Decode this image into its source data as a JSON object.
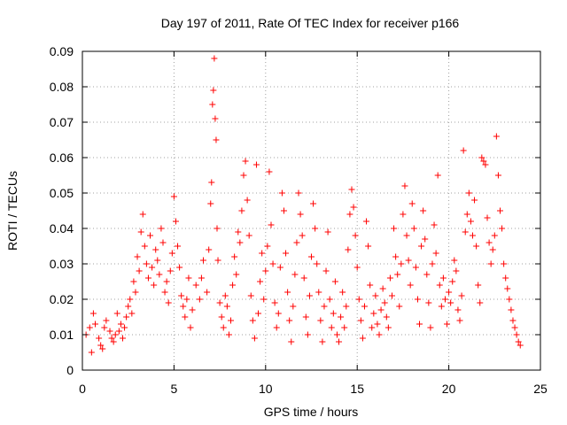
{
  "chart_data": {
    "type": "scatter",
    "title": "Day 197 of 2011, Rate Of TEC Index for receiver p166",
    "xlabel": "GPS time / hours",
    "ylabel": "ROTI / TECUs",
    "xlim": [
      0,
      25
    ],
    "ylim": [
      0,
      0.09
    ],
    "x_ticks": [
      "0",
      "5",
      "10",
      "15",
      "20",
      "25"
    ],
    "y_ticks": [
      "0",
      "0.01",
      "0.02",
      "0.03",
      "0.04",
      "0.05",
      "0.06",
      "0.07",
      "0.08",
      "0.09"
    ],
    "grid": true,
    "marker": "+",
    "marker_color": "#ff0000",
    "series": [
      {
        "points": [
          [
            0.2,
            0.01
          ],
          [
            0.4,
            0.012
          ],
          [
            0.5,
            0.005
          ],
          [
            0.6,
            0.016
          ],
          [
            0.7,
            0.013
          ],
          [
            0.9,
            0.009
          ],
          [
            1.0,
            0.007
          ],
          [
            1.1,
            0.006
          ],
          [
            1.2,
            0.012
          ],
          [
            1.3,
            0.014
          ],
          [
            1.5,
            0.011
          ],
          [
            1.6,
            0.009
          ],
          [
            1.7,
            0.008
          ],
          [
            1.8,
            0.01
          ],
          [
            1.9,
            0.016
          ],
          [
            2.0,
            0.011
          ],
          [
            2.1,
            0.013
          ],
          [
            2.2,
            0.009
          ],
          [
            2.3,
            0.012
          ],
          [
            2.4,
            0.015
          ],
          [
            2.5,
            0.018
          ],
          [
            2.6,
            0.02
          ],
          [
            2.7,
            0.016
          ],
          [
            2.8,
            0.025
          ],
          [
            2.9,
            0.022
          ],
          [
            3.0,
            0.032
          ],
          [
            3.1,
            0.028
          ],
          [
            3.2,
            0.039
          ],
          [
            3.3,
            0.044
          ],
          [
            3.4,
            0.035
          ],
          [
            3.5,
            0.03
          ],
          [
            3.6,
            0.026
          ],
          [
            3.7,
            0.038
          ],
          [
            3.8,
            0.029
          ],
          [
            3.9,
            0.024
          ],
          [
            4.0,
            0.034
          ],
          [
            4.1,
            0.031
          ],
          [
            4.2,
            0.027
          ],
          [
            4.3,
            0.04
          ],
          [
            4.4,
            0.036
          ],
          [
            4.5,
            0.022
          ],
          [
            4.6,
            0.025
          ],
          [
            4.7,
            0.019
          ],
          [
            4.8,
            0.028
          ],
          [
            4.9,
            0.033
          ],
          [
            5.0,
            0.049
          ],
          [
            5.1,
            0.042
          ],
          [
            5.2,
            0.035
          ],
          [
            5.3,
            0.029
          ],
          [
            5.4,
            0.021
          ],
          [
            5.5,
            0.018
          ],
          [
            5.6,
            0.015
          ],
          [
            5.7,
            0.02
          ],
          [
            5.8,
            0.026
          ],
          [
            5.9,
            0.012
          ],
          [
            6.0,
            0.017
          ],
          [
            6.2,
            0.024
          ],
          [
            6.4,
            0.02
          ],
          [
            6.5,
            0.026
          ],
          [
            6.6,
            0.031
          ],
          [
            6.8,
            0.022
          ],
          [
            6.9,
            0.034
          ],
          [
            7.0,
            0.047
          ],
          [
            7.05,
            0.053
          ],
          [
            7.1,
            0.075
          ],
          [
            7.15,
            0.079
          ],
          [
            7.2,
            0.088
          ],
          [
            7.25,
            0.071
          ],
          [
            7.3,
            0.065
          ],
          [
            7.35,
            0.04
          ],
          [
            7.4,
            0.031
          ],
          [
            7.5,
            0.019
          ],
          [
            7.6,
            0.015
          ],
          [
            7.7,
            0.012
          ],
          [
            7.8,
            0.021
          ],
          [
            7.9,
            0.018
          ],
          [
            8.0,
            0.01
          ],
          [
            8.1,
            0.014
          ],
          [
            8.2,
            0.024
          ],
          [
            8.3,
            0.032
          ],
          [
            8.4,
            0.027
          ],
          [
            8.5,
            0.039
          ],
          [
            8.6,
            0.036
          ],
          [
            8.7,
            0.045
          ],
          [
            8.8,
            0.055
          ],
          [
            8.9,
            0.059
          ],
          [
            9.0,
            0.048
          ],
          [
            9.1,
            0.038
          ],
          [
            9.2,
            0.021
          ],
          [
            9.3,
            0.014
          ],
          [
            9.4,
            0.009
          ],
          [
            9.5,
            0.058
          ],
          [
            9.6,
            0.016
          ],
          [
            9.7,
            0.025
          ],
          [
            9.8,
            0.033
          ],
          [
            9.9,
            0.02
          ],
          [
            10.0,
            0.028
          ],
          [
            10.1,
            0.035
          ],
          [
            10.2,
            0.056
          ],
          [
            10.3,
            0.041
          ],
          [
            10.4,
            0.03
          ],
          [
            10.5,
            0.019
          ],
          [
            10.6,
            0.012
          ],
          [
            10.7,
            0.016
          ],
          [
            10.8,
            0.029
          ],
          [
            10.9,
            0.05
          ],
          [
            11.0,
            0.045
          ],
          [
            11.1,
            0.033
          ],
          [
            11.2,
            0.022
          ],
          [
            11.3,
            0.014
          ],
          [
            11.4,
            0.008
          ],
          [
            11.5,
            0.018
          ],
          [
            11.6,
            0.027
          ],
          [
            11.7,
            0.036
          ],
          [
            11.8,
            0.05
          ],
          [
            11.9,
            0.044
          ],
          [
            12.0,
            0.038
          ],
          [
            12.1,
            0.026
          ],
          [
            12.2,
            0.015
          ],
          [
            12.3,
            0.01
          ],
          [
            12.4,
            0.021
          ],
          [
            12.5,
            0.032
          ],
          [
            12.6,
            0.047
          ],
          [
            12.7,
            0.04
          ],
          [
            12.8,
            0.03
          ],
          [
            12.9,
            0.022
          ],
          [
            13.0,
            0.014
          ],
          [
            13.1,
            0.008
          ],
          [
            13.2,
            0.018
          ],
          [
            13.3,
            0.028
          ],
          [
            13.4,
            0.039
          ],
          [
            13.5,
            0.02
          ],
          [
            13.6,
            0.012
          ],
          [
            13.7,
            0.016
          ],
          [
            13.8,
            0.025
          ],
          [
            13.9,
            0.01
          ],
          [
            14.0,
            0.008
          ],
          [
            14.1,
            0.015
          ],
          [
            14.2,
            0.022
          ],
          [
            14.3,
            0.012
          ],
          [
            14.4,
            0.018
          ],
          [
            14.5,
            0.034
          ],
          [
            14.6,
            0.044
          ],
          [
            14.7,
            0.051
          ],
          [
            14.8,
            0.046
          ],
          [
            14.9,
            0.038
          ],
          [
            15.0,
            0.029
          ],
          [
            15.1,
            0.02
          ],
          [
            15.2,
            0.014
          ],
          [
            15.3,
            0.009
          ],
          [
            15.4,
            0.018
          ],
          [
            15.5,
            0.042
          ],
          [
            15.6,
            0.035
          ],
          [
            15.7,
            0.024
          ],
          [
            15.8,
            0.012
          ],
          [
            15.9,
            0.016
          ],
          [
            16.0,
            0.021
          ],
          [
            16.1,
            0.013
          ],
          [
            16.2,
            0.01
          ],
          [
            16.3,
            0.017
          ],
          [
            16.4,
            0.023
          ],
          [
            16.5,
            0.019
          ],
          [
            16.6,
            0.015
          ],
          [
            16.7,
            0.012
          ],
          [
            16.8,
            0.026
          ],
          [
            16.9,
            0.021
          ],
          [
            17.0,
            0.04
          ],
          [
            17.1,
            0.032
          ],
          [
            17.2,
            0.027
          ],
          [
            17.3,
            0.018
          ],
          [
            17.4,
            0.03
          ],
          [
            17.5,
            0.044
          ],
          [
            17.6,
            0.052
          ],
          [
            17.7,
            0.038
          ],
          [
            17.8,
            0.031
          ],
          [
            17.9,
            0.024
          ],
          [
            18.0,
            0.047
          ],
          [
            18.1,
            0.04
          ],
          [
            18.2,
            0.029
          ],
          [
            18.3,
            0.02
          ],
          [
            18.4,
            0.013
          ],
          [
            18.5,
            0.035
          ],
          [
            18.6,
            0.045
          ],
          [
            18.7,
            0.037
          ],
          [
            18.8,
            0.027
          ],
          [
            18.9,
            0.019
          ],
          [
            19.0,
            0.012
          ],
          [
            19.1,
            0.03
          ],
          [
            19.2,
            0.041
          ],
          [
            19.3,
            0.033
          ],
          [
            19.4,
            0.055
          ],
          [
            19.5,
            0.024
          ],
          [
            19.6,
            0.018
          ],
          [
            19.7,
            0.026
          ],
          [
            19.8,
            0.02
          ],
          [
            19.9,
            0.013
          ],
          [
            20.0,
            0.022
          ],
          [
            20.1,
            0.019
          ],
          [
            20.2,
            0.025
          ],
          [
            20.3,
            0.031
          ],
          [
            20.4,
            0.028
          ],
          [
            20.5,
            0.017
          ],
          [
            20.6,
            0.014
          ],
          [
            20.7,
            0.021
          ],
          [
            20.8,
            0.062
          ],
          [
            20.9,
            0.039
          ],
          [
            21.0,
            0.044
          ],
          [
            21.1,
            0.05
          ],
          [
            21.2,
            0.042
          ],
          [
            21.3,
            0.038
          ],
          [
            21.4,
            0.048
          ],
          [
            21.5,
            0.035
          ],
          [
            21.6,
            0.024
          ],
          [
            21.7,
            0.019
          ],
          [
            21.8,
            0.06
          ],
          [
            21.9,
            0.059
          ],
          [
            22.0,
            0.058
          ],
          [
            22.1,
            0.043
          ],
          [
            22.2,
            0.036
          ],
          [
            22.3,
            0.03
          ],
          [
            22.4,
            0.034
          ],
          [
            22.5,
            0.038
          ],
          [
            22.6,
            0.066
          ],
          [
            22.7,
            0.055
          ],
          [
            22.8,
            0.045
          ],
          [
            22.9,
            0.04
          ],
          [
            23.0,
            0.03
          ],
          [
            23.1,
            0.026
          ],
          [
            23.2,
            0.023
          ],
          [
            23.3,
            0.02
          ],
          [
            23.4,
            0.017
          ],
          [
            23.5,
            0.014
          ],
          [
            23.6,
            0.012
          ],
          [
            23.7,
            0.01
          ],
          [
            23.8,
            0.008
          ],
          [
            23.9,
            0.007
          ]
        ]
      }
    ]
  }
}
